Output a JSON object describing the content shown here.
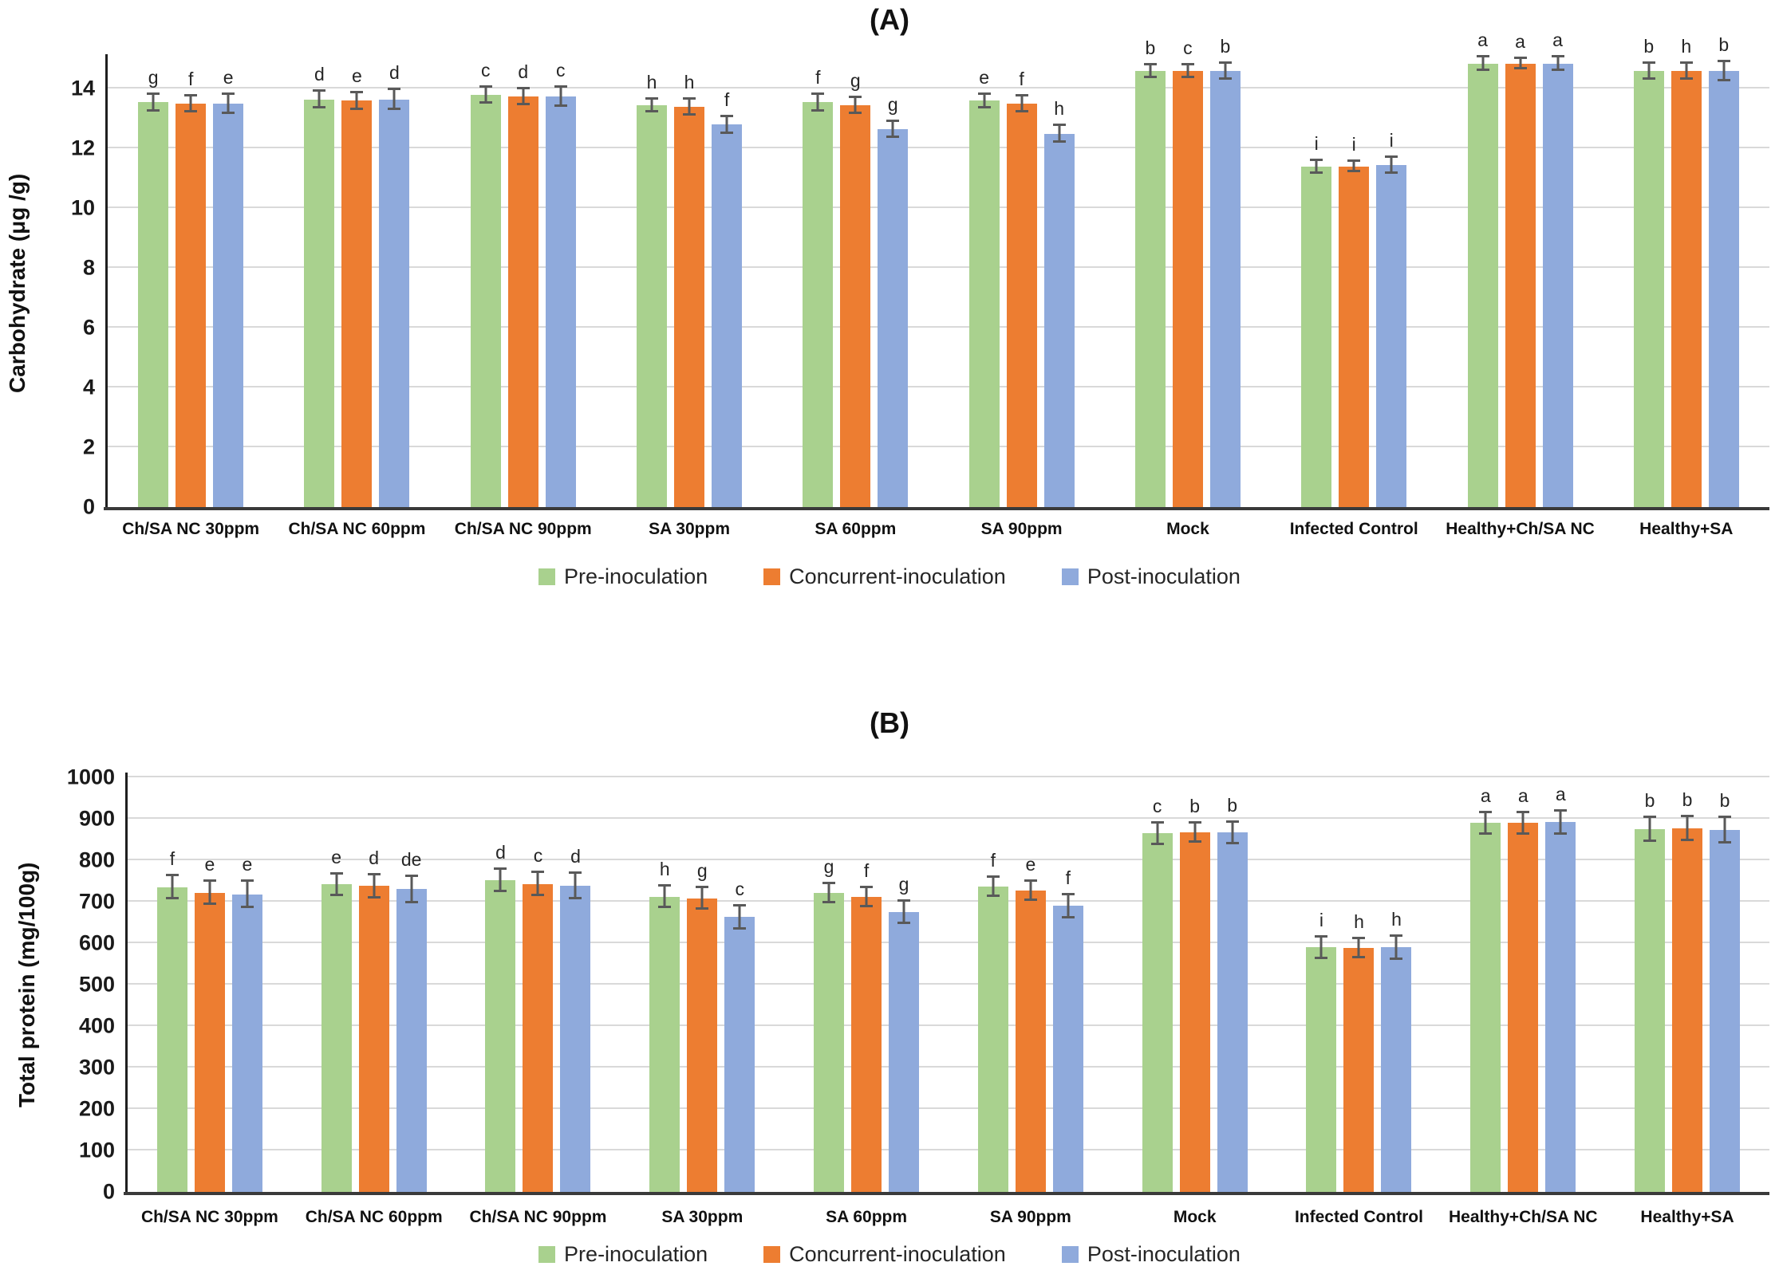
{
  "figure": {
    "background": "#ffffff",
    "gridline_color": "#d9d9d9",
    "axis_color": "#1f1f1f",
    "error_bar_color": "#595959",
    "letter_color": "#262626"
  },
  "chart_data": [
    {
      "type": "bar",
      "title": "(A)",
      "ylabel": "Carbohydrate (μg /g)",
      "xlabel": "",
      "ylim": [
        0,
        15
      ],
      "ygrid_max": 14,
      "ytick_interval": 2,
      "grid": true,
      "legend_position": "bottom",
      "categories": [
        "Ch/SA NC 30ppm",
        "Ch/SA NC 60ppm",
        "Ch/SA NC 90ppm",
        "SA 30ppm",
        "SA 60ppm",
        "SA 90ppm",
        "Mock",
        "Infected Control",
        "Healthy+Ch/SA NC",
        "Healthy+SA"
      ],
      "series": [
        {
          "name": "Pre-inoculation",
          "color": "#A9D18E",
          "values": [
            13.55,
            13.65,
            13.8,
            13.45,
            13.55,
            13.6,
            14.6,
            11.4,
            14.85,
            14.6
          ],
          "errors": [
            0.3,
            0.3,
            0.3,
            0.25,
            0.3,
            0.25,
            0.25,
            0.25,
            0.25,
            0.3
          ],
          "letters": [
            "g",
            "d",
            "c",
            "h",
            "f",
            "e",
            "b",
            "i",
            "a",
            "b"
          ]
        },
        {
          "name": "Concurrent-inoculation",
          "color": "#ED7D31",
          "values": [
            13.5,
            13.6,
            13.75,
            13.4,
            13.45,
            13.5,
            14.6,
            11.4,
            14.85,
            14.6
          ],
          "errors": [
            0.3,
            0.3,
            0.3,
            0.3,
            0.3,
            0.3,
            0.25,
            0.2,
            0.2,
            0.3
          ],
          "letters": [
            "f",
            "e",
            "d",
            "h",
            "g",
            "f",
            "c",
            "i",
            "a",
            "h"
          ]
        },
        {
          "name": "Post-inoculation",
          "color": "#8FAADC",
          "values": [
            13.5,
            13.65,
            13.75,
            12.8,
            12.65,
            12.5,
            14.6,
            11.45,
            14.85,
            14.6
          ],
          "errors": [
            0.35,
            0.35,
            0.35,
            0.3,
            0.3,
            0.3,
            0.3,
            0.3,
            0.25,
            0.35
          ],
          "letters": [
            "e",
            "d",
            "c",
            "f",
            "g",
            "h",
            "b",
            "i",
            "a",
            "b"
          ]
        }
      ]
    },
    {
      "type": "bar",
      "title": "(B)",
      "ylabel": "Total protein (mg/100g)",
      "xlabel": "",
      "ylim": [
        0,
        1000
      ],
      "ygrid_max": 1000,
      "ytick_interval": 100,
      "grid": true,
      "legend_position": "bottom",
      "categories": [
        "Ch/SA NC 30ppm",
        "Ch/SA NC 60ppm",
        "Ch/SA NC 90ppm",
        "SA 30ppm",
        "SA 60ppm",
        "SA 90ppm",
        "Mock",
        "Infected Control",
        "Healthy+Ch/SA NC",
        "Healthy+SA"
      ],
      "series": [
        {
          "name": "Pre-inoculation",
          "color": "#A9D18E",
          "values": [
            735,
            742,
            752,
            712,
            722,
            737,
            865,
            590,
            890,
            875
          ],
          "errors": [
            30,
            28,
            28,
            28,
            25,
            25,
            28,
            28,
            28,
            30
          ],
          "letters": [
            "f",
            "e",
            "d",
            "h",
            "g",
            "f",
            "c",
            "i",
            "a",
            "b"
          ]
        },
        {
          "name": "Concurrent-inoculation",
          "color": "#ED7D31",
          "values": [
            722,
            738,
            743,
            708,
            712,
            726,
            867,
            588,
            890,
            877
          ],
          "errors": [
            30,
            30,
            30,
            28,
            25,
            25,
            25,
            25,
            28,
            30
          ],
          "letters": [
            "e",
            "d",
            "c",
            "g",
            "f",
            "e",
            "b",
            "h",
            "a",
            "b"
          ]
        },
        {
          "name": "Post-inoculation",
          "color": "#8FAADC",
          "values": [
            718,
            730,
            738,
            663,
            675,
            690,
            867,
            590,
            892,
            873
          ],
          "errors": [
            33,
            33,
            33,
            30,
            28,
            30,
            28,
            30,
            30,
            32
          ],
          "letters": [
            "e",
            "de",
            "d",
            "c",
            "g",
            "f",
            "b",
            "h",
            "a",
            "b"
          ]
        }
      ]
    }
  ]
}
